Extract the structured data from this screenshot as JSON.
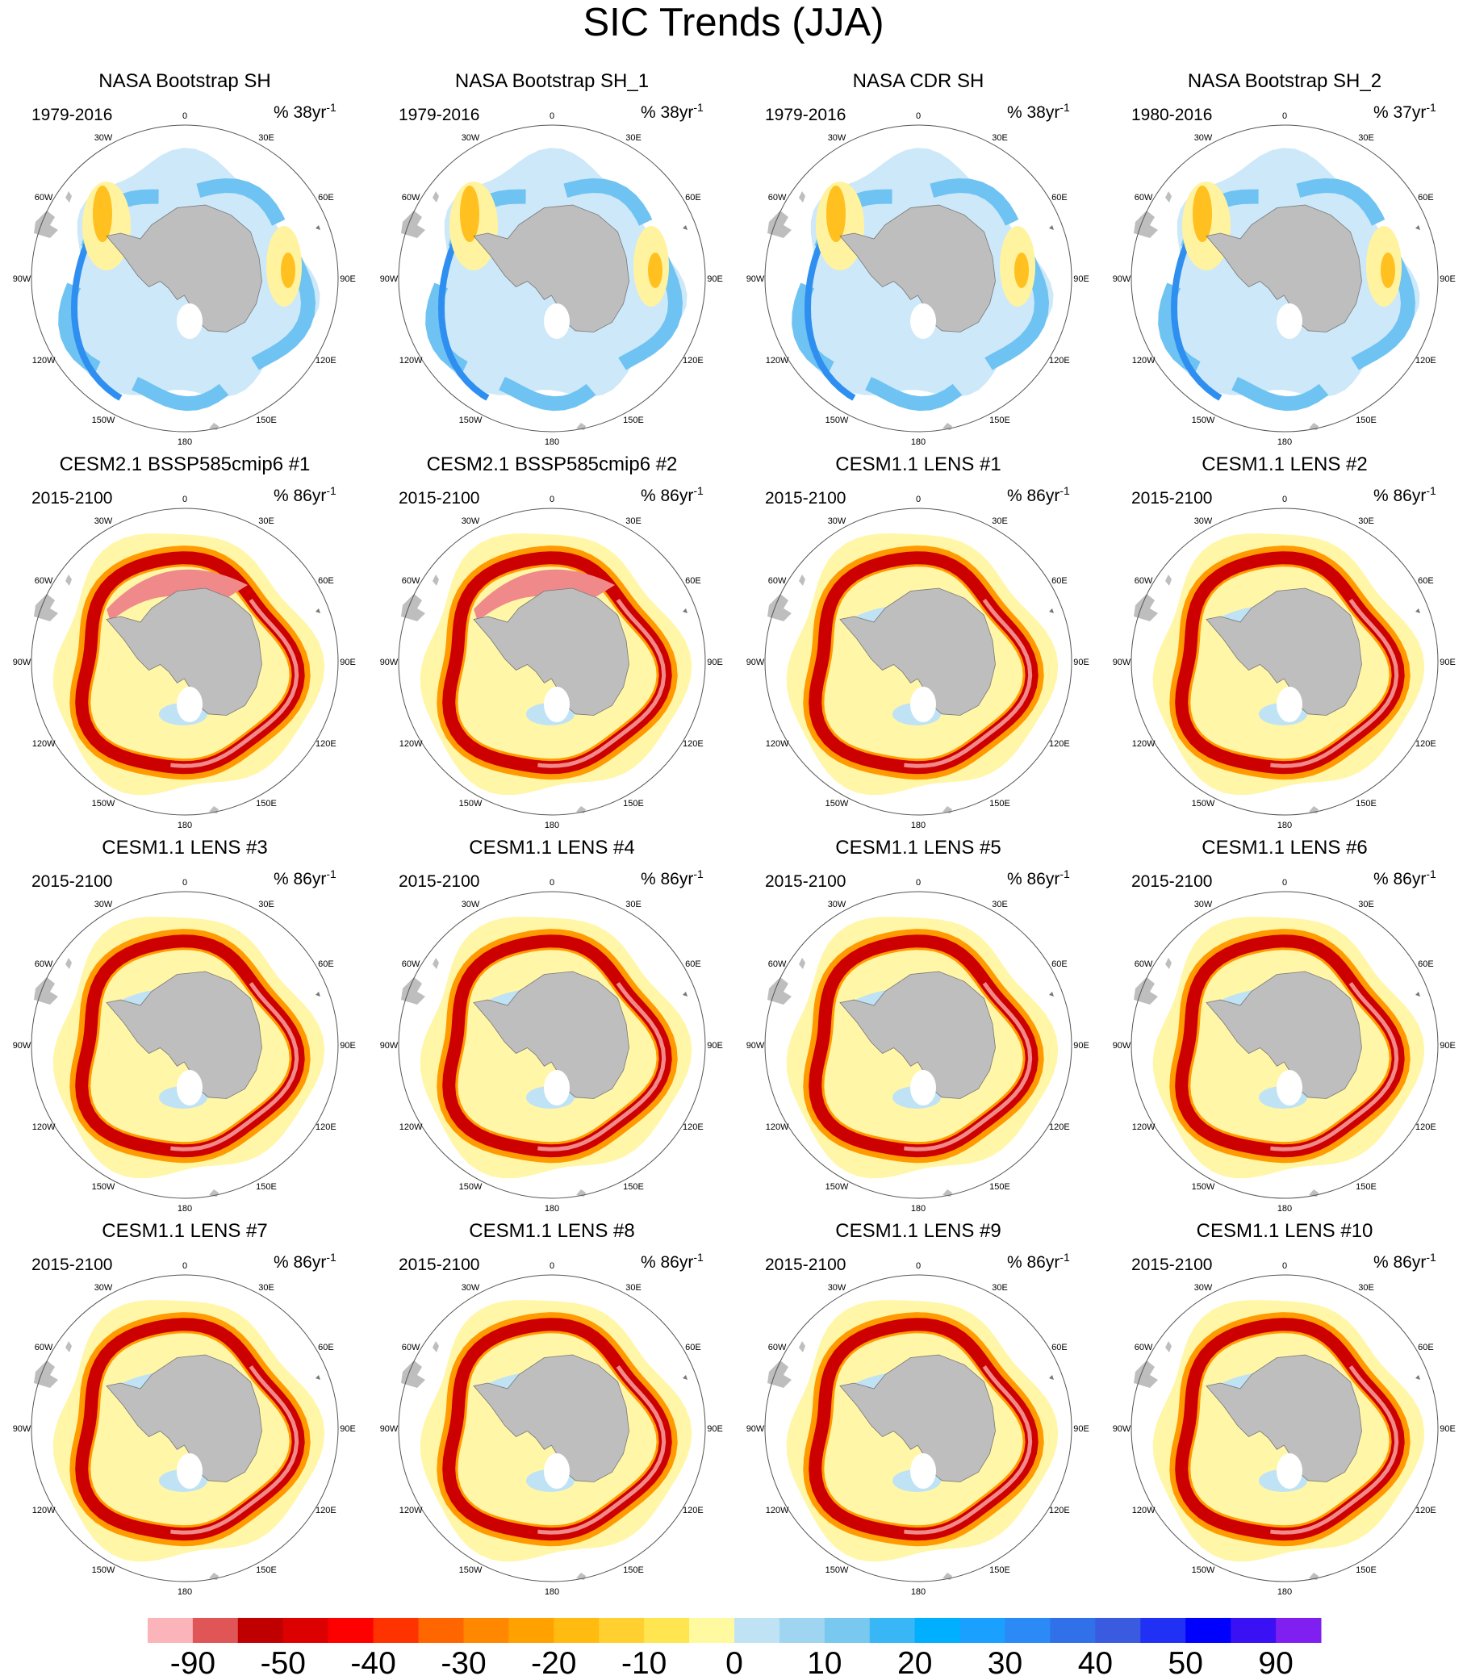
{
  "figure": {
    "title": "SIC Trends (JJA)"
  },
  "chart_data": {
    "type": "contour-map-grid",
    "title": "SIC Trends (JJA)",
    "projection": "south-polar-stereographic",
    "longitude_labels": [
      "0",
      "30E",
      "60E",
      "90E",
      "120E",
      "150E",
      "180",
      "150W",
      "120W",
      "90W",
      "60W",
      "30W"
    ],
    "panels": [
      {
        "title": "NASA Bootstrap SH",
        "years": "1979-2016",
        "units_prefix": "% 38yr",
        "units_exp": "-1",
        "style": "obs"
      },
      {
        "title": "NASA Bootstrap SH_1",
        "years": "1979-2016",
        "units_prefix": "% 38yr",
        "units_exp": "-1",
        "style": "obs"
      },
      {
        "title": "NASA CDR SH",
        "years": "1979-2016",
        "units_prefix": "% 38yr",
        "units_exp": "-1",
        "style": "obs"
      },
      {
        "title": "NASA Bootstrap SH_2",
        "years": "1980-2016",
        "units_prefix": "% 37yr",
        "units_exp": "-1",
        "style": "obs"
      },
      {
        "title": "CESM2.1 BSSP585cmip6 #1",
        "years": "2015-2100",
        "units_prefix": "% 86yr",
        "units_exp": "-1",
        "style": "cesm2"
      },
      {
        "title": "CESM2.1 BSSP585cmip6 #2",
        "years": "2015-2100",
        "units_prefix": "% 86yr",
        "units_exp": "-1",
        "style": "cesm2"
      },
      {
        "title": "CESM1.1 LENS #1",
        "years": "2015-2100",
        "units_prefix": "% 86yr",
        "units_exp": "-1",
        "style": "lens"
      },
      {
        "title": "CESM1.1 LENS #2",
        "years": "2015-2100",
        "units_prefix": "% 86yr",
        "units_exp": "-1",
        "style": "lens"
      },
      {
        "title": "CESM1.1 LENS #3",
        "years": "2015-2100",
        "units_prefix": "% 86yr",
        "units_exp": "-1",
        "style": "lens"
      },
      {
        "title": "CESM1.1 LENS #4",
        "years": "2015-2100",
        "units_prefix": "% 86yr",
        "units_exp": "-1",
        "style": "lens"
      },
      {
        "title": "CESM1.1 LENS #5",
        "years": "2015-2100",
        "units_prefix": "% 86yr",
        "units_exp": "-1",
        "style": "lens"
      },
      {
        "title": "CESM1.1 LENS #6",
        "years": "2015-2100",
        "units_prefix": "% 86yr",
        "units_exp": "-1",
        "style": "lens"
      },
      {
        "title": "CESM1.1 LENS #7",
        "years": "2015-2100",
        "units_prefix": "% 86yr",
        "units_exp": "-1",
        "style": "lens"
      },
      {
        "title": "CESM1.1 LENS #8",
        "years": "2015-2100",
        "units_prefix": "% 86yr",
        "units_exp": "-1",
        "style": "lens"
      },
      {
        "title": "CESM1.1 LENS #9",
        "years": "2015-2100",
        "units_prefix": "% 86yr",
        "units_exp": "-1",
        "style": "lens"
      },
      {
        "title": "CESM1.1 LENS #10",
        "years": "2015-2100",
        "units_prefix": "% 86yr",
        "units_exp": "-1",
        "style": "lens"
      }
    ],
    "colorbar": {
      "colors": [
        "#fbb4b9",
        "#e05556",
        "#c00000",
        "#dd0000",
        "#ff0000",
        "#ff3300",
        "#ff6600",
        "#ff8800",
        "#ffa200",
        "#ffbb10",
        "#ffd030",
        "#ffe650",
        "#fffaa0",
        "#bfe3f5",
        "#9fd5f0",
        "#78c8f0",
        "#38b6f5",
        "#00b0ff",
        "#1aa0ff",
        "#2b8af5",
        "#3070e8",
        "#3a5ae0",
        "#2030f5",
        "#0000ff",
        "#3a10f5",
        "#7f20f0"
      ],
      "tick_labels": [
        "-90",
        "-50",
        "-40",
        "-30",
        "-20",
        "-10",
        "0",
        "10",
        "20",
        "30",
        "40",
        "50",
        "90"
      ]
    },
    "style_colors": {
      "land": "#bebebe",
      "obs_fill": "#cde8f8",
      "obs_blue": "#6ec3f2",
      "obs_deep": "#2e8ff0",
      "obs_yellow": "#fff3a0",
      "obs_orange": "#ffc020",
      "model_yellow": "#fff6a8",
      "model_red": "#cc0000",
      "model_pink": "#f08a8a",
      "model_orange": "#ff9a00",
      "model_blue": "#bfe3f5"
    }
  }
}
